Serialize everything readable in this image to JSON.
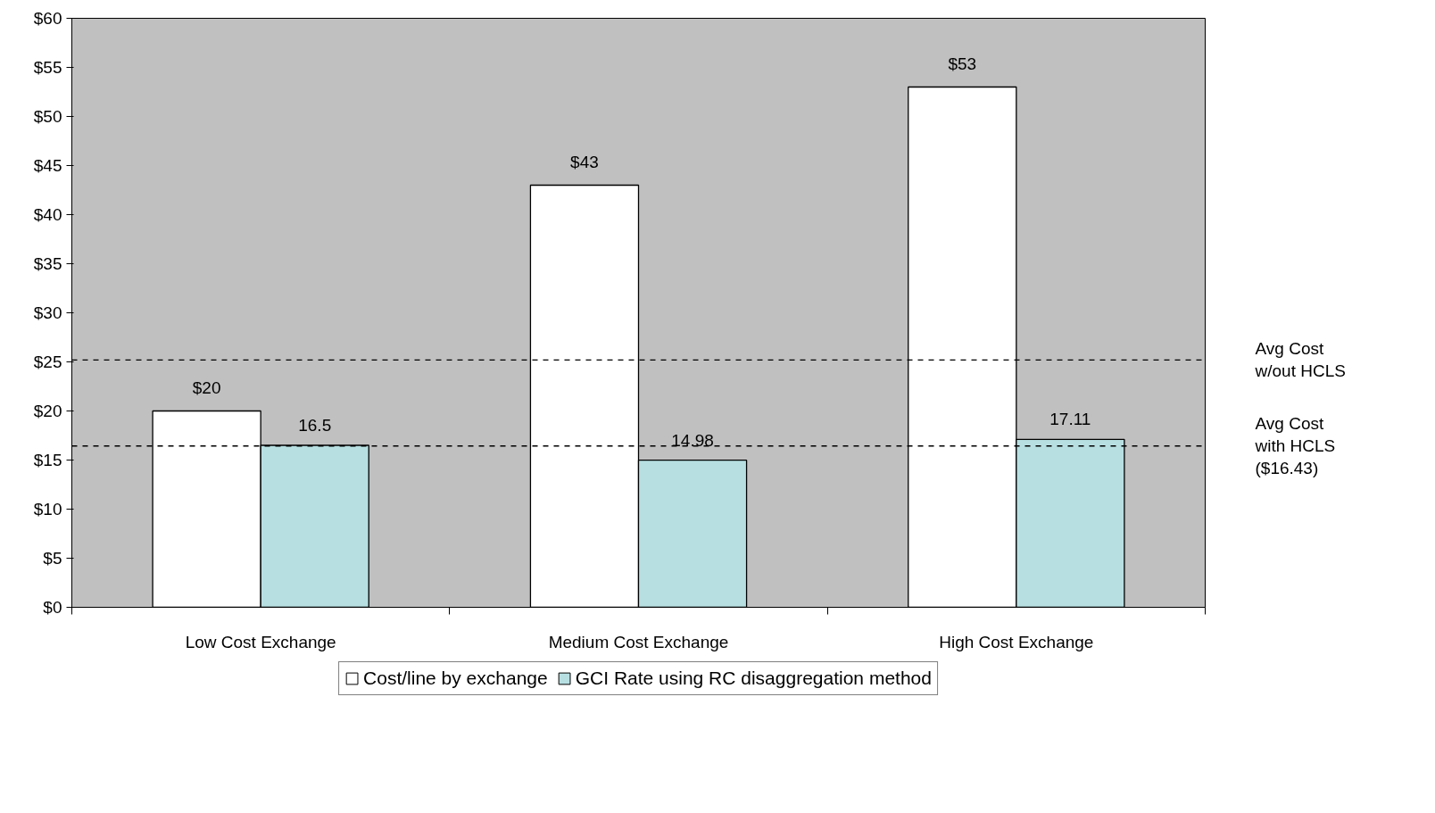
{
  "chart_data": {
    "type": "bar",
    "categories": [
      "Low Cost Exchange",
      "Medium Cost Exchange",
      "High Cost Exchange"
    ],
    "series": [
      {
        "name": "Cost/line by exchange",
        "color": "#ffffff",
        "values": [
          20,
          43,
          53
        ],
        "value_labels": [
          "$20",
          "$43",
          "$53"
        ]
      },
      {
        "name": "GCI Rate using RC disaggregation method",
        "color": "#b7dfe2",
        "values": [
          16.5,
          14.98,
          17.11
        ],
        "value_labels": [
          "16.5",
          "14.98",
          "17.11"
        ]
      }
    ],
    "ylim": [
      0,
      60
    ],
    "yticks": [
      {
        "value": 0,
        "label": "$0"
      },
      {
        "value": 5,
        "label": "$5"
      },
      {
        "value": 10,
        "label": "$10"
      },
      {
        "value": 15,
        "label": "$15"
      },
      {
        "value": 20,
        "label": "$20"
      },
      {
        "value": 25,
        "label": "$25"
      },
      {
        "value": 30,
        "label": "$30"
      },
      {
        "value": 35,
        "label": "$35"
      },
      {
        "value": 40,
        "label": "$40"
      },
      {
        "value": 45,
        "label": "$45"
      },
      {
        "value": 50,
        "label": "$50"
      },
      {
        "value": 55,
        "label": "$55"
      },
      {
        "value": 60,
        "label": "$60"
      }
    ],
    "ref_lines": [
      {
        "axis": "y",
        "value": 25.2,
        "label": "Avg Cost\nw/out HCLS",
        "line_style": "dashed"
      },
      {
        "axis": "y",
        "value": 16.43,
        "label": "Avg Cost\nwith HCLS\n($16.43)",
        "line_style": "dashed"
      }
    ],
    "grid": false,
    "legend": "bottom"
  }
}
